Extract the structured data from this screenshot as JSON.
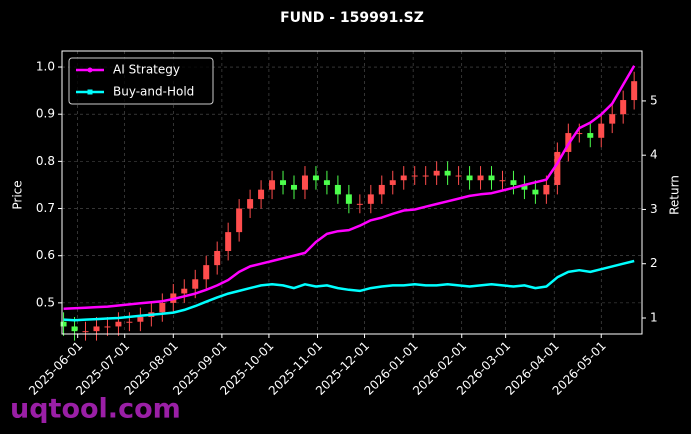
{
  "chart_data": {
    "type": "candlestick",
    "title": "FUND - 159991.SZ",
    "ylabel": "Price",
    "y2label": "Return",
    "watermark": "uqtool.com",
    "x": [
      "2025-05-23",
      "2025-05-30",
      "2025-06-06",
      "2025-06-13",
      "2025-06-20",
      "2025-06-27",
      "2025-07-04",
      "2025-07-11",
      "2025-07-18",
      "2025-07-25",
      "2025-08-01",
      "2025-08-08",
      "2025-08-15",
      "2025-08-22",
      "2025-08-29",
      "2025-09-05",
      "2025-09-12",
      "2025-09-19",
      "2025-09-26",
      "2025-10-03",
      "2025-10-10",
      "2025-10-17",
      "2025-10-24",
      "2025-10-31",
      "2025-11-07",
      "2025-11-14",
      "2025-11-21",
      "2025-11-28",
      "2025-12-05",
      "2025-12-12",
      "2025-12-19",
      "2025-12-26",
      "2026-01-02",
      "2026-01-09",
      "2026-01-16",
      "2026-01-23",
      "2026-01-30",
      "2026-02-06",
      "2026-02-13",
      "2026-02-20",
      "2026-02-27",
      "2026-03-06",
      "2026-03-13",
      "2026-03-20",
      "2026-03-27",
      "2026-04-03",
      "2026-04-10",
      "2026-04-17",
      "2026-04-24",
      "2026-05-01",
      "2026-05-08",
      "2026-05-15",
      "2026-05-22"
    ],
    "open": [
      0.46,
      0.45,
      0.44,
      0.44,
      0.45,
      0.45,
      0.46,
      0.46,
      0.47,
      0.48,
      0.5,
      0.52,
      0.53,
      0.55,
      0.58,
      0.61,
      0.65,
      0.7,
      0.72,
      0.74,
      0.76,
      0.75,
      0.74,
      0.77,
      0.76,
      0.75,
      0.73,
      0.71,
      0.71,
      0.73,
      0.75,
      0.76,
      0.77,
      0.77,
      0.77,
      0.78,
      0.77,
      0.77,
      0.76,
      0.77,
      0.76,
      0.76,
      0.75,
      0.74,
      0.73,
      0.75,
      0.82,
      0.86,
      0.86,
      0.85,
      0.88,
      0.9,
      0.93
    ],
    "high": [
      0.48,
      0.47,
      0.46,
      0.47,
      0.47,
      0.48,
      0.48,
      0.49,
      0.5,
      0.52,
      0.54,
      0.55,
      0.57,
      0.6,
      0.63,
      0.67,
      0.72,
      0.74,
      0.76,
      0.78,
      0.78,
      0.77,
      0.79,
      0.79,
      0.78,
      0.77,
      0.75,
      0.73,
      0.75,
      0.77,
      0.78,
      0.79,
      0.79,
      0.79,
      0.8,
      0.8,
      0.79,
      0.79,
      0.79,
      0.79,
      0.78,
      0.78,
      0.77,
      0.76,
      0.77,
      0.84,
      0.88,
      0.88,
      0.88,
      0.9,
      0.92,
      0.95,
      0.99
    ],
    "low": [
      0.43,
      0.42,
      0.42,
      0.42,
      0.43,
      0.43,
      0.44,
      0.44,
      0.45,
      0.46,
      0.48,
      0.5,
      0.51,
      0.53,
      0.56,
      0.59,
      0.63,
      0.68,
      0.7,
      0.72,
      0.73,
      0.72,
      0.72,
      0.74,
      0.73,
      0.71,
      0.69,
      0.69,
      0.69,
      0.71,
      0.73,
      0.74,
      0.75,
      0.75,
      0.75,
      0.75,
      0.75,
      0.74,
      0.74,
      0.74,
      0.74,
      0.73,
      0.72,
      0.71,
      0.71,
      0.73,
      0.8,
      0.84,
      0.83,
      0.83,
      0.86,
      0.88,
      0.91
    ],
    "close": [
      0.45,
      0.44,
      0.44,
      0.45,
      0.45,
      0.46,
      0.46,
      0.47,
      0.48,
      0.5,
      0.52,
      0.53,
      0.55,
      0.58,
      0.61,
      0.65,
      0.7,
      0.72,
      0.74,
      0.76,
      0.75,
      0.74,
      0.77,
      0.76,
      0.75,
      0.73,
      0.71,
      0.71,
      0.73,
      0.75,
      0.76,
      0.77,
      0.77,
      0.77,
      0.78,
      0.77,
      0.77,
      0.76,
      0.77,
      0.76,
      0.76,
      0.75,
      0.74,
      0.73,
      0.75,
      0.82,
      0.86,
      0.86,
      0.85,
      0.88,
      0.9,
      0.93,
      0.97
    ],
    "up_color": "#ff4d4d",
    "down_color": "#4dff4d",
    "series": [
      {
        "name": "AI Strategy",
        "color": "#ff00ff",
        "axis": "y2",
        "values": [
          1.17,
          1.18,
          1.19,
          1.2,
          1.21,
          1.23,
          1.25,
          1.27,
          1.29,
          1.31,
          1.35,
          1.4,
          1.45,
          1.52,
          1.6,
          1.7,
          1.85,
          1.95,
          2.0,
          2.05,
          2.1,
          2.15,
          2.2,
          2.4,
          2.55,
          2.6,
          2.62,
          2.7,
          2.8,
          2.85,
          2.92,
          2.98,
          3.0,
          3.05,
          3.1,
          3.15,
          3.2,
          3.25,
          3.28,
          3.3,
          3.35,
          3.4,
          3.45,
          3.5,
          3.55,
          3.85,
          4.2,
          4.5,
          4.6,
          4.75,
          4.95,
          5.3,
          5.65
        ]
      },
      {
        "name": "Buy-and-Hold",
        "color": "#00ffff",
        "axis": "y2",
        "values": [
          0.97,
          0.96,
          0.97,
          0.98,
          0.99,
          1.0,
          1.02,
          1.04,
          1.06,
          1.08,
          1.1,
          1.15,
          1.22,
          1.3,
          1.38,
          1.45,
          1.5,
          1.55,
          1.6,
          1.62,
          1.6,
          1.55,
          1.62,
          1.58,
          1.6,
          1.55,
          1.52,
          1.5,
          1.55,
          1.58,
          1.6,
          1.6,
          1.62,
          1.6,
          1.6,
          1.62,
          1.6,
          1.58,
          1.6,
          1.62,
          1.6,
          1.58,
          1.6,
          1.55,
          1.58,
          1.75,
          1.85,
          1.88,
          1.85,
          1.9,
          1.95,
          2.0,
          2.05
        ]
      }
    ],
    "xlim": [
      "2025-05-22",
      "2026-05-27"
    ],
    "xticks": [
      "2025-06-01",
      "2025-07-01",
      "2025-08-01",
      "2025-09-01",
      "2025-10-01",
      "2025-11-01",
      "2025-12-01",
      "2026-01-01",
      "2026-02-01",
      "2026-03-01",
      "2026-04-01",
      "2026-05-01"
    ],
    "ylim": [
      0.434,
      1.034
    ],
    "yticks": [
      0.5,
      0.6,
      0.7,
      0.8,
      0.9,
      {
        "value": 1,
        "label": "1.0"
      }
    ],
    "y2lim": [
      0.705,
      5.92
    ],
    "y2ticks": [
      1,
      2,
      3,
      4,
      5
    ],
    "grid": true,
    "legend": "upper left"
  }
}
